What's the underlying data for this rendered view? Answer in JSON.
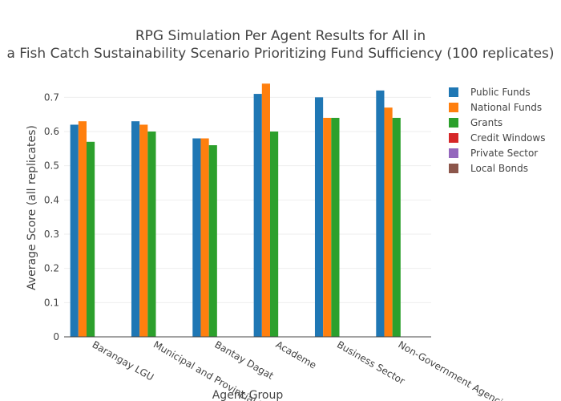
{
  "chart_data": {
    "type": "bar",
    "title_lines": [
      "RPG Simulation Per Agent Results for All in",
      "a Fish Catch Sustainability Scenario Prioritizing Fund Sufficiency (100 replicates)"
    ],
    "xlabel": "Agent Group",
    "ylabel": "Average Score (all replicates)",
    "ylim": [
      0,
      0.75
    ],
    "yticks": [
      0,
      0.1,
      0.2,
      0.3,
      0.4,
      0.5,
      0.6,
      0.7
    ],
    "ytick_labels": [
      "0",
      "0.1",
      "0.2",
      "0.3",
      "0.4",
      "0.5",
      "0.6",
      "0.7"
    ],
    "grid": true,
    "legend_position": "top-right",
    "categories": [
      "Barangay LGU",
      "Municipal and Provincial LGU",
      "Bantay Dagat",
      "Academe",
      "Business Sector",
      "Non-Government Agencies"
    ],
    "series": [
      {
        "name": "Public Funds",
        "color": "#1f77b4",
        "values": [
          0.62,
          0.63,
          0.58,
          0.71,
          0.7,
          0.72
        ]
      },
      {
        "name": "National Funds",
        "color": "#ff7f0e",
        "values": [
          0.63,
          0.62,
          0.58,
          0.74,
          0.64,
          0.67
        ]
      },
      {
        "name": "Grants",
        "color": "#2ca02c",
        "values": [
          0.57,
          0.6,
          0.56,
          0.6,
          0.64,
          0.64
        ]
      },
      {
        "name": "Credit Windows",
        "color": "#d62728",
        "values": [
          0,
          0,
          0,
          0,
          0,
          0
        ]
      },
      {
        "name": "Private Sector",
        "color": "#9467bd",
        "values": [
          0,
          0,
          0,
          0,
          0,
          0
        ]
      },
      {
        "name": "Local Bonds",
        "color": "#8c564b",
        "values": [
          0,
          0,
          0,
          0,
          0,
          0
        ]
      }
    ]
  }
}
